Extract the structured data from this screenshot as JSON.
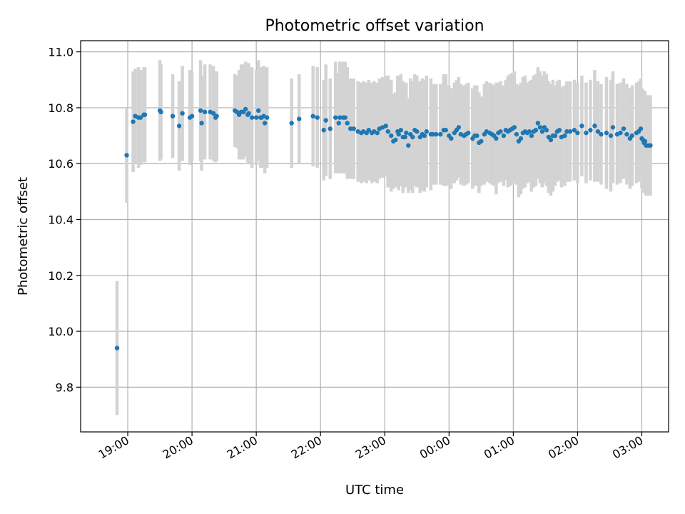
{
  "chart_data": {
    "type": "scatter",
    "title": "Photometric offset variation",
    "xlabel": "UTC time",
    "ylabel": "Photometric offset",
    "x_tick_labels": [
      "19:00",
      "20:00",
      "21:00",
      "22:00",
      "23:00",
      "00:00",
      "01:00",
      "02:00",
      "03:00"
    ],
    "y_tick_labels": [
      "9.8",
      "10.0",
      "10.2",
      "10.4",
      "10.6",
      "10.8",
      "11.0"
    ],
    "y_ticks": [
      9.8,
      10.0,
      10.2,
      10.4,
      10.6,
      10.8,
      11.0
    ],
    "xlim": [
      "18:16",
      "03:25"
    ],
    "ylim": [
      9.64,
      11.04
    ],
    "grid": true,
    "colors": {
      "points": "#1f77b4",
      "errorbars": "#d3d3d3",
      "grid": "#b0b0b0"
    },
    "series": [
      {
        "x": [
          "18:50",
          "18:59",
          "19:05",
          "19:07",
          "19:10",
          "19:12",
          "19:15",
          "19:16",
          "19:30",
          "19:31",
          "19:42",
          "19:48",
          "19:51",
          "19:58",
          "20:00",
          "20:08",
          "20:09",
          "20:12",
          "20:17",
          "20:20",
          "20:22",
          "20:23",
          "20:40",
          "20:42",
          "20:44",
          "20:46",
          "20:48",
          "20:50",
          "20:52",
          "20:53",
          "20:56",
          "21:00",
          "21:02",
          "21:04",
          "21:05",
          "21:07",
          "21:08",
          "21:10",
          "21:33",
          "21:40",
          "21:53",
          "21:57",
          "22:03",
          "22:05",
          "22:09",
          "22:14",
          "22:17",
          "22:18",
          "22:21",
          "22:23",
          "22:25",
          "22:28",
          "22:31",
          "22:35",
          "22:38",
          "22:40",
          "22:43",
          "22:45",
          "22:48",
          "22:50",
          "22:53",
          "22:55",
          "22:58",
          "23:01",
          "23:03",
          "23:06",
          "23:08",
          "23:10",
          "23:12",
          "23:13",
          "23:15",
          "23:17",
          "23:19",
          "23:20",
          "23:22",
          "23:24",
          "23:26",
          "23:28",
          "23:30",
          "23:33",
          "23:35",
          "23:37",
          "23:39",
          "23:43",
          "23:45",
          "23:48",
          "23:52",
          "23:55",
          "23:57",
          "24:00",
          "24:02",
          "24:05",
          "24:07",
          "24:09",
          "24:11",
          "24:14",
          "24:16",
          "24:18",
          "24:22",
          "24:24",
          "24:26",
          "24:28",
          "24:30",
          "24:33",
          "24:35",
          "24:38",
          "24:40",
          "24:42",
          "24:44",
          "24:46",
          "24:48",
          "24:51",
          "24:53",
          "24:55",
          "24:57",
          "24:59",
          "25:01",
          "25:03",
          "25:05",
          "25:07",
          "25:09",
          "25:11",
          "25:13",
          "25:15",
          "25:17",
          "25:19",
          "25:21",
          "25:23",
          "25:25",
          "25:27",
          "25:29",
          "25:31",
          "25:33",
          "25:35",
          "25:37",
          "25:39",
          "25:41",
          "25:43",
          "25:45",
          "25:48",
          "25:50",
          "25:53",
          "25:57",
          "26:00",
          "26:04",
          "26:08",
          "26:12",
          "26:16",
          "26:19",
          "26:22",
          "26:27",
          "26:31",
          "26:33",
          "26:37",
          "26:40",
          "26:43",
          "26:46",
          "26:49",
          "26:51",
          "26:55",
          "26:57",
          "26:59",
          "27:00",
          "27:01",
          "27:02",
          "27:03",
          "27:04",
          "27:06",
          "27:08"
        ],
        "y": [
          9.94,
          10.63,
          10.75,
          10.77,
          10.765,
          10.765,
          10.775,
          10.775,
          10.79,
          10.785,
          10.77,
          10.735,
          10.78,
          10.765,
          10.77,
          10.79,
          10.745,
          10.785,
          10.785,
          10.78,
          10.765,
          10.77,
          10.79,
          10.785,
          10.775,
          10.785,
          10.785,
          10.795,
          10.775,
          10.78,
          10.765,
          10.765,
          10.79,
          10.765,
          10.765,
          10.77,
          10.745,
          10.765,
          10.745,
          10.76,
          10.77,
          10.765,
          10.72,
          10.755,
          10.725,
          10.765,
          10.745,
          10.765,
          10.765,
          10.765,
          10.745,
          10.725,
          10.725,
          10.715,
          10.71,
          10.715,
          10.71,
          10.72,
          10.71,
          10.715,
          10.71,
          10.725,
          10.73,
          10.735,
          10.715,
          10.7,
          10.68,
          10.685,
          10.715,
          10.705,
          10.72,
          10.695,
          10.695,
          10.71,
          10.665,
          10.705,
          10.695,
          10.72,
          10.715,
          10.695,
          10.705,
          10.7,
          10.715,
          10.705,
          10.705,
          10.705,
          10.705,
          10.72,
          10.72,
          10.7,
          10.69,
          10.71,
          10.72,
          10.73,
          10.705,
          10.7,
          10.705,
          10.71,
          10.69,
          10.7,
          10.7,
          10.675,
          10.68,
          10.705,
          10.715,
          10.71,
          10.705,
          10.7,
          10.69,
          10.71,
          10.715,
          10.7,
          10.72,
          10.715,
          10.72,
          10.725,
          10.73,
          10.705,
          10.68,
          10.69,
          10.71,
          10.715,
          10.71,
          10.715,
          10.7,
          10.715,
          10.72,
          10.745,
          10.73,
          10.715,
          10.73,
          10.72,
          10.695,
          10.685,
          10.7,
          10.7,
          10.715,
          10.72,
          10.695,
          10.7,
          10.715,
          10.715,
          10.72,
          10.71,
          10.735,
          10.71,
          10.72,
          10.735,
          10.715,
          10.705,
          10.71,
          10.7,
          10.73,
          10.705,
          10.71,
          10.725,
          10.705,
          10.69,
          10.7,
          10.71,
          10.715,
          10.725,
          10.69,
          10.685,
          10.675,
          10.68,
          10.665,
          10.665,
          10.665
        ],
        "err": [
          0.24,
          0.17,
          0.18,
          0.17,
          0.18,
          0.17,
          0.17,
          0.17,
          0.18,
          0.17,
          0.15,
          0.16,
          0.17,
          0.17,
          0.16,
          0.18,
          0.17,
          0.17,
          0.17,
          0.17,
          0.16,
          0.16,
          0.13,
          0.13,
          0.16,
          0.17,
          0.17,
          0.17,
          0.17,
          0.18,
          0.18,
          0.17,
          0.18,
          0.18,
          0.18,
          0.18,
          0.18,
          0.18,
          0.16,
          0.16,
          0.18,
          0.18,
          0.18,
          0.2,
          0.18,
          0.2,
          0.18,
          0.2,
          0.2,
          0.2,
          0.2,
          0.18,
          0.18,
          0.18,
          0.18,
          0.18,
          0.18,
          0.18,
          0.18,
          0.18,
          0.18,
          0.18,
          0.18,
          0.18,
          0.2,
          0.2,
          0.17,
          0.17,
          0.2,
          0.2,
          0.2,
          0.2,
          0.18,
          0.18,
          0.17,
          0.2,
          0.2,
          0.2,
          0.2,
          0.2,
          0.2,
          0.2,
          0.2,
          0.2,
          0.18,
          0.18,
          0.18,
          0.2,
          0.2,
          0.18,
          0.18,
          0.18,
          0.18,
          0.18,
          0.18,
          0.18,
          0.18,
          0.18,
          0.18,
          0.18,
          0.18,
          0.18,
          0.16,
          0.18,
          0.18,
          0.18,
          0.18,
          0.18,
          0.2,
          0.18,
          0.18,
          0.18,
          0.18,
          0.2,
          0.2,
          0.2,
          0.2,
          0.18,
          0.2,
          0.2,
          0.2,
          0.2,
          0.18,
          0.18,
          0.2,
          0.2,
          0.2,
          0.2,
          0.2,
          0.2,
          0.2,
          0.2,
          0.2,
          0.2,
          0.2,
          0.18,
          0.18,
          0.18,
          0.18,
          0.18,
          0.18,
          0.18,
          0.18,
          0.18,
          0.18,
          0.18,
          0.18,
          0.2,
          0.18,
          0.18,
          0.2,
          0.2,
          0.2,
          0.18,
          0.18,
          0.18,
          0.18,
          0.18,
          0.18,
          0.18,
          0.18,
          0.18,
          0.18,
          0.18,
          0.18,
          0.18,
          0.18,
          0.18,
          0.18
        ]
      }
    ]
  }
}
